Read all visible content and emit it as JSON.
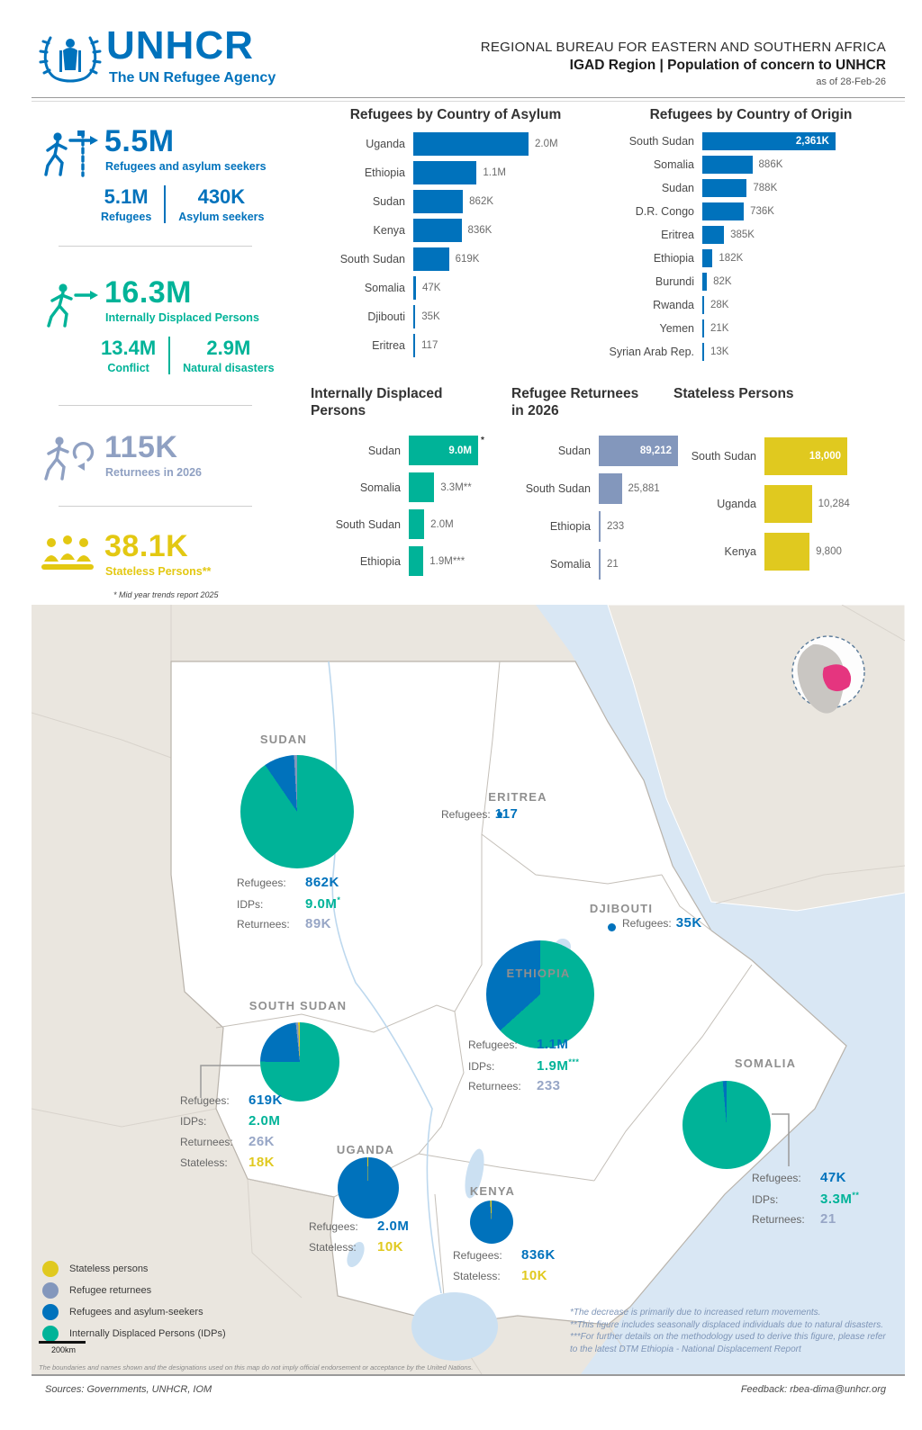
{
  "header": {
    "logo_word": "UNHCR",
    "logo_tagline": "The UN Refugee Agency",
    "title_line1": "REGIONAL BUREAU FOR EASTERN AND SOUTHERN AFRICA",
    "title_line2": "IGAD Region | Population of concern to UNHCR",
    "as_of": "as of 28-Feb-26"
  },
  "colors": {
    "blue": "#0072BC",
    "teal": "#00B398",
    "slate": "#8397BC",
    "yellow": "#E0C91F",
    "pink": "#E5357F"
  },
  "stats": [
    {
      "value": "5.5M",
      "label": "Refugees and asylum seekers",
      "sub": [
        {
          "value": "5.1M",
          "label": "Refugees"
        },
        {
          "value": "430K",
          "label": "Asylum seekers"
        }
      ]
    },
    {
      "value": "16.3M",
      "label": "Internally Displaced Persons",
      "sub": [
        {
          "value": "13.4M",
          "label": "Conflict"
        },
        {
          "value": "2.9M",
          "label": "Natural disasters"
        }
      ]
    },
    {
      "value": "115K",
      "label": "Returnees in 2026"
    },
    {
      "value": "38.1K",
      "label": "Stateless Persons**",
      "footnote": "* Mid year trends report 2025"
    }
  ],
  "chart_data": [
    {
      "id": "asylum",
      "type": "bar",
      "title": "Refugees by Country of Asylum",
      "color_key": "blue",
      "categories": [
        "Uganda",
        "Ethiopia",
        "Sudan",
        "Kenya",
        "South Sudan",
        "Somalia",
        "Djibouti",
        "Eritrea"
      ],
      "values": [
        2000000,
        1100000,
        862000,
        836000,
        619000,
        47000,
        35000,
        117
      ],
      "labels": [
        "2.0M",
        "1.1M",
        "862K",
        "836K",
        "619K",
        "47K",
        "35K",
        "117"
      ],
      "inside": [
        false,
        false,
        false,
        false,
        false,
        false,
        false,
        false
      ]
    },
    {
      "id": "origin",
      "type": "bar",
      "title": "Refugees by Country of Origin",
      "color_key": "blue",
      "categories": [
        "South Sudan",
        "Somalia",
        "Sudan",
        "D.R. Congo",
        "Eritrea",
        "Ethiopia",
        "Burundi",
        "Rwanda",
        "Yemen",
        "Syrian Arab Rep."
      ],
      "values": [
        2361000,
        886000,
        788000,
        736000,
        385000,
        182000,
        82000,
        28000,
        21000,
        13000
      ],
      "labels": [
        "2,361K",
        "886K",
        "788K",
        "736K",
        "385K",
        "182K",
        "82K",
        "28K",
        "21K",
        "13K"
      ],
      "inside": [
        true,
        false,
        false,
        false,
        false,
        false,
        false,
        false,
        false,
        false
      ]
    },
    {
      "id": "idp",
      "type": "bar",
      "title": "Internally Displaced\nPersons",
      "color_key": "teal",
      "categories": [
        "Sudan",
        "Somalia",
        "South Sudan",
        "Ethiopia"
      ],
      "values": [
        9000000,
        3300000,
        2000000,
        1900000
      ],
      "labels": [
        "9.0M",
        "3.3M**",
        "2.0M",
        "1.9M***"
      ],
      "inside": [
        true,
        false,
        false,
        false
      ],
      "suffixes": [
        "*",
        "",
        "",
        ""
      ]
    },
    {
      "id": "returnees",
      "type": "bar",
      "title": "Refugee Returnees\nin 2026",
      "color_key": "slate",
      "categories": [
        "Sudan",
        "South Sudan",
        "Ethiopia",
        "Somalia"
      ],
      "values": [
        89212,
        25881,
        233,
        21
      ],
      "labels": [
        "89,212",
        "25,881",
        "233",
        "21"
      ],
      "inside": [
        true,
        false,
        false,
        false
      ]
    },
    {
      "id": "stateless",
      "type": "bar",
      "title": "Stateless Persons",
      "color_key": "yellow",
      "categories": [
        "South Sudan",
        "Uganda",
        "Kenya"
      ],
      "values": [
        18000,
        10284,
        9800
      ],
      "labels": [
        "18,000",
        "10,284",
        "9,800"
      ],
      "inside": [
        true,
        false,
        false
      ]
    },
    {
      "id": "pie-sudan",
      "type": "pie",
      "country": "Sudan",
      "slices": [
        {
          "label": "IDPs",
          "value": 9000000,
          "color_key": "teal"
        },
        {
          "label": "Refugees",
          "value": 862000,
          "color_key": "blue"
        },
        {
          "label": "Returnees",
          "value": 89000,
          "color_key": "slate"
        }
      ]
    },
    {
      "id": "pie-ethiopia",
      "type": "pie",
      "country": "Ethiopia",
      "slices": [
        {
          "label": "IDPs",
          "value": 1900000,
          "color_key": "teal"
        },
        {
          "label": "Refugees",
          "value": 1100000,
          "color_key": "blue"
        },
        {
          "label": "Returnees",
          "value": 233,
          "color_key": "slate"
        }
      ]
    },
    {
      "id": "pie-south-sudan",
      "type": "pie",
      "country": "South Sudan",
      "slices": [
        {
          "label": "IDPs",
          "value": 2000000,
          "color_key": "teal"
        },
        {
          "label": "Refugees",
          "value": 619000,
          "color_key": "blue"
        },
        {
          "label": "Returnees",
          "value": 26000,
          "color_key": "slate"
        },
        {
          "label": "Stateless",
          "value": 18000,
          "color_key": "yellow"
        }
      ]
    },
    {
      "id": "pie-uganda",
      "type": "pie",
      "country": "Uganda",
      "slices": [
        {
          "label": "Refugees",
          "value": 2000000,
          "color_key": "blue"
        },
        {
          "label": "Stateless",
          "value": 10000,
          "color_key": "yellow"
        }
      ]
    },
    {
      "id": "pie-kenya",
      "type": "pie",
      "country": "Kenya",
      "slices": [
        {
          "label": "Refugees",
          "value": 836000,
          "color_key": "blue"
        },
        {
          "label": "Stateless",
          "value": 10000,
          "color_key": "yellow"
        }
      ]
    },
    {
      "id": "pie-somalia",
      "type": "pie",
      "country": "Somalia",
      "slices": [
        {
          "label": "IDPs",
          "value": 3300000,
          "color_key": "teal"
        },
        {
          "label": "Refugees",
          "value": 47000,
          "color_key": "blue"
        },
        {
          "label": "Returnees",
          "value": 21,
          "color_key": "slate"
        }
      ]
    }
  ],
  "map": {
    "countries": [
      {
        "id": "sudan",
        "label": "SUDAN"
      },
      {
        "id": "eritrea",
        "label": "ERITREA"
      },
      {
        "id": "djibouti",
        "label": "DJIBOUTI"
      },
      {
        "id": "ethiopia",
        "label": "ETHIOPIA"
      },
      {
        "id": "south_sudan",
        "label": "SOUTH SUDAN"
      },
      {
        "id": "uganda",
        "label": "UGANDA"
      },
      {
        "id": "kenya",
        "label": "KENYA"
      },
      {
        "id": "somalia",
        "label": "SOMALIA"
      }
    ],
    "callouts": [
      {
        "id": "sudan",
        "rows": [
          {
            "k": "Refugees:",
            "v": "862K",
            "c": "blue"
          },
          {
            "k": "IDPs:",
            "v": "9.0M",
            "c": "teal",
            "sup": "*"
          },
          {
            "k": "Returnees:",
            "v": "89K",
            "c": "slate"
          }
        ]
      },
      {
        "id": "eritrea",
        "rows": [
          {
            "k": "Refugees:",
            "v": "117",
            "c": "blue"
          }
        ]
      },
      {
        "id": "djibouti",
        "rows": [
          {
            "k": "Refugees:",
            "v": "35K",
            "c": "blue"
          }
        ]
      },
      {
        "id": "ethiopia",
        "rows": [
          {
            "k": "Refugees:",
            "v": "1.1M",
            "c": "blue"
          },
          {
            "k": "IDPs:",
            "v": "1.9M",
            "c": "teal",
            "sup": "***"
          },
          {
            "k": "Returnees:",
            "v": "233",
            "c": "slate"
          }
        ]
      },
      {
        "id": "south_sudan",
        "rows": [
          {
            "k": "Refugees:",
            "v": "619K",
            "c": "blue"
          },
          {
            "k": "IDPs:",
            "v": "2.0M",
            "c": "teal"
          },
          {
            "k": "Returnees:",
            "v": "26K",
            "c": "slate"
          },
          {
            "k": "Stateless:",
            "v": "18K",
            "c": "yellow"
          }
        ]
      },
      {
        "id": "uganda",
        "rows": [
          {
            "k": "Refugees:",
            "v": "2.0M",
            "c": "blue"
          },
          {
            "k": "Stateless:",
            "v": "10K",
            "c": "yellow"
          }
        ]
      },
      {
        "id": "kenya",
        "rows": [
          {
            "k": "Refugees:",
            "v": "836K",
            "c": "blue"
          },
          {
            "k": "Stateless:",
            "v": "10K",
            "c": "yellow"
          }
        ]
      },
      {
        "id": "somalia",
        "rows": [
          {
            "k": "Refugees:",
            "v": "47K",
            "c": "blue"
          },
          {
            "k": "IDPs:",
            "v": "3.3M",
            "c": "teal",
            "sup": "**"
          },
          {
            "k": "Returnees:",
            "v": "21",
            "c": "slate"
          }
        ]
      }
    ],
    "legend": [
      {
        "label": "Stateless persons",
        "color_key": "yellow"
      },
      {
        "label": "Refugee returnees",
        "color_key": "slate"
      },
      {
        "label": "Refugees and asylum-seekers",
        "color_key": "blue"
      },
      {
        "label": "Internally Displaced Persons (IDPs)",
        "color_key": "teal"
      }
    ],
    "scale_label": "200km",
    "disclaimer": "The boundaries and names shown and the designations used on this map do not imply official endorsement or acceptance by the United Nations.",
    "footnotes": [
      "*The decrease is primarily due to increased return movements.",
      "**This figure includes seasonally displaced individuals due to natural disasters.",
      "***For further details on the methodology used to derive this figure, please refer to the latest DTM Ethiopia - National Displacement Report"
    ]
  },
  "footer": {
    "sources": "Sources: Governments, UNHCR, IOM",
    "feedback": "Feedback: rbea-dima@unhcr.org"
  }
}
